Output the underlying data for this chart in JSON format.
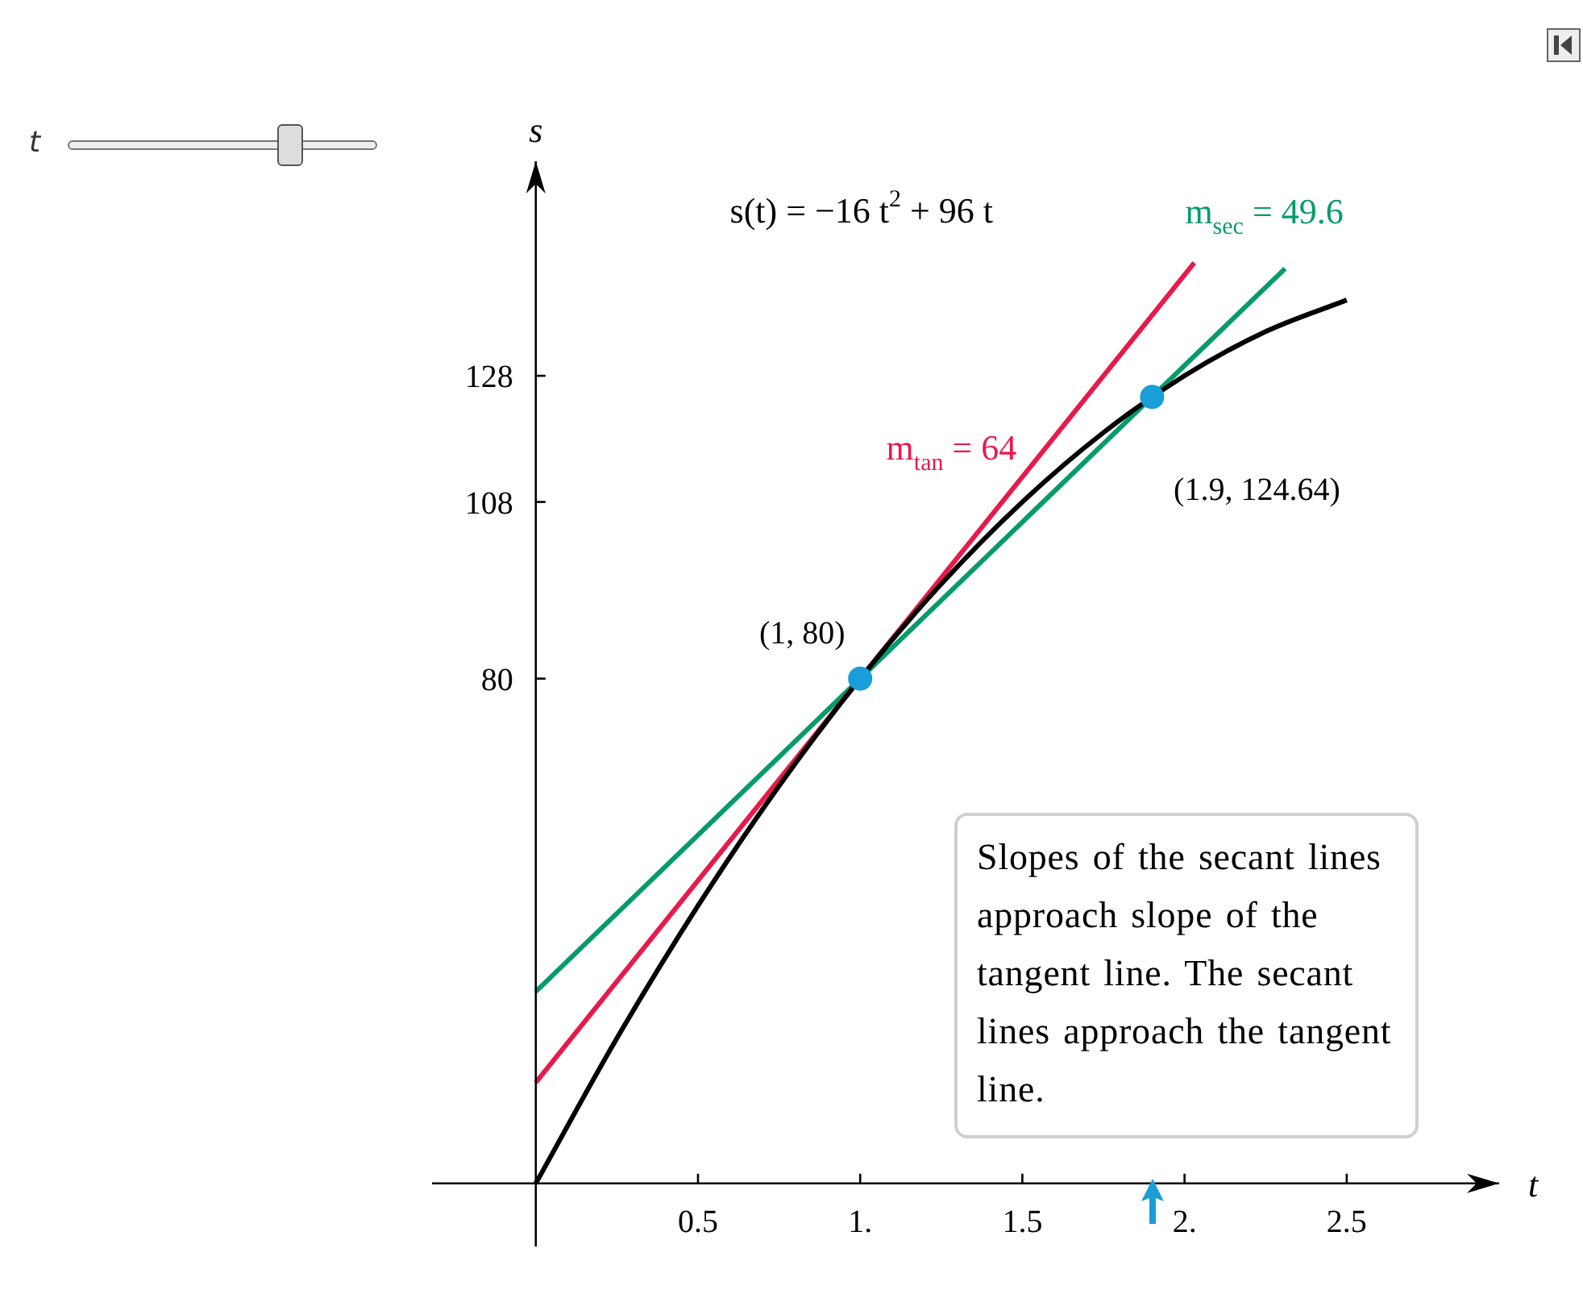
{
  "chart_data": {
    "type": "line",
    "title": "s(t) = −16 t$^{2}$ + 96 t",
    "xlabel": "t",
    "ylabel": "s",
    "xlim": [
      -0.32,
      2.97
    ],
    "ylim": [
      -10,
      162
    ],
    "xticks": [
      {
        "value": 0.5,
        "label": "0.5"
      },
      {
        "value": 1,
        "label": "1."
      },
      {
        "value": 1.5,
        "label": "1.5"
      },
      {
        "value": 2,
        "label": "2."
      },
      {
        "value": 2.5,
        "label": "2.5"
      }
    ],
    "yticks": [
      80,
      108,
      128
    ],
    "grid": false,
    "legend": false,
    "line_style": "solid",
    "series": [
      {
        "type": "line",
        "color": "#000000",
        "x": [
          0,
          0.25,
          0.5,
          0.75,
          1,
          1.25,
          1.5,
          1.75,
          2,
          2.25,
          2.5
        ],
        "values": [
          0,
          23,
          44,
          63,
          80,
          95,
          108,
          119,
          128,
          135,
          140
        ]
      },
      {
        "type": "line",
        "name": "m$_{tan}$ = 64",
        "color": "#e8194b",
        "x": [
          0,
          2.03
        ],
        "values": [
          16,
          145.9
        ]
      },
      {
        "type": "line",
        "name": "m$_{sec}$ = 49.6",
        "color": "#069b6a",
        "x": [
          0,
          2.31
        ],
        "values": [
          30.4,
          145
        ]
      },
      {
        "type": "scatter",
        "marker": "circle",
        "color": "#1a9ed9",
        "x": [
          1,
          1.9
        ],
        "values": [
          80,
          124.64
        ]
      }
    ],
    "annotations": [
      {
        "text": "(1, 80)",
        "x": 1,
        "y": 80
      },
      {
        "text": "(1.9, 124.64)",
        "x": 1.9,
        "y": 124.64
      },
      "Slopes of the secant lines approach slope of the tangent line. The secant lines approach the tangent line."
    ]
  }
}
